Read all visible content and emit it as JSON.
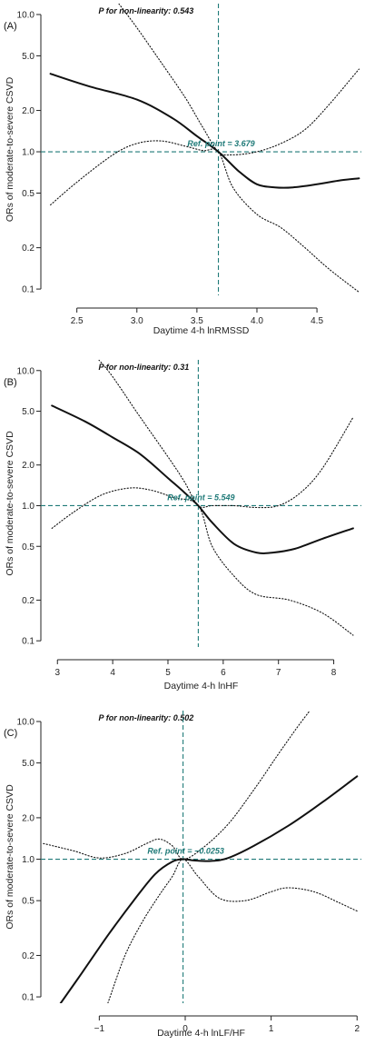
{
  "chart_data": [
    {
      "type": "line",
      "panel_label": "(A)",
      "annotation": "P for non-linearity: 0.543",
      "ref_label": "Ref. point = 3.679",
      "ref_x": 3.679,
      "ref_y": 1.0,
      "xlabel": "Daytime 4-h lnRMSSD",
      "ylabel": "ORs of moderate-to-severe CSVD",
      "xlim": [
        2.2,
        4.87
      ],
      "ylim": [
        0.09,
        12
      ],
      "yscale": "log",
      "x_ticks": [
        2.5,
        3.0,
        3.5,
        4.0,
        4.5
      ],
      "x_tick_labels": [
        "2.5",
        "3.0",
        "3.5",
        "4.0",
        "4.5"
      ],
      "y_ticks": [
        0.1,
        0.2,
        0.5,
        1.0,
        2.0,
        5.0,
        10.0
      ],
      "y_tick_labels": [
        "0.1",
        "0.2",
        "0.5",
        "1.0",
        "2.0",
        "5.0",
        "10.0"
      ],
      "series": [
        {
          "role": "estimate",
          "x": [
            2.28,
            2.6,
            3.0,
            3.3,
            3.5,
            3.679,
            3.85,
            4.0,
            4.15,
            4.3,
            4.5,
            4.7,
            4.85
          ],
          "y": [
            3.7,
            3.0,
            2.4,
            1.75,
            1.3,
            1.0,
            0.72,
            0.58,
            0.55,
            0.55,
            0.58,
            0.62,
            0.64
          ]
        },
        {
          "role": "upper-ci",
          "x": [
            2.85,
            3.0,
            3.2,
            3.4,
            3.55,
            3.679,
            3.8,
            4.0,
            4.2,
            4.4,
            4.6,
            4.85
          ],
          "y": [
            12,
            8.0,
            4.5,
            2.5,
            1.5,
            1.0,
            0.95,
            1.0,
            1.15,
            1.45,
            2.2,
            4.0
          ]
        },
        {
          "role": "lower-ci",
          "x": [
            2.28,
            2.5,
            2.8,
            3.0,
            3.2,
            3.4,
            3.55,
            3.679,
            3.8,
            4.0,
            4.2,
            4.4,
            4.6,
            4.85
          ],
          "y": [
            0.41,
            0.6,
            0.95,
            1.15,
            1.2,
            1.1,
            1.02,
            1.0,
            0.55,
            0.35,
            0.28,
            0.2,
            0.14,
            0.095
          ]
        }
      ]
    },
    {
      "type": "line",
      "panel_label": "(B)",
      "annotation": "P for non-linearity: 0.31",
      "ref_label": "Ref. point = 5.549",
      "ref_x": 5.549,
      "ref_y": 1.0,
      "xlabel": "Daytime 4-h lnHF",
      "ylabel": "ORs of moderate-to-severe CSVD",
      "xlim": [
        2.7,
        8.5
      ],
      "ylim": [
        0.09,
        12
      ],
      "yscale": "log",
      "x_ticks": [
        3,
        4,
        5,
        6,
        7,
        8
      ],
      "x_tick_labels": [
        "3",
        "4",
        "5",
        "6",
        "7",
        "8"
      ],
      "y_ticks": [
        0.1,
        0.2,
        0.5,
        1.0,
        2.0,
        5.0,
        10.0
      ],
      "y_tick_labels": [
        "0.1",
        "0.2",
        "0.5",
        "1.0",
        "2.0",
        "5.0",
        "10.0"
      ],
      "series": [
        {
          "role": "estimate",
          "x": [
            2.9,
            3.5,
            4.0,
            4.5,
            5.0,
            5.3,
            5.549,
            5.8,
            6.2,
            6.6,
            6.9,
            7.3,
            7.8,
            8.35
          ],
          "y": [
            5.5,
            4.2,
            3.2,
            2.4,
            1.6,
            1.25,
            1.0,
            0.75,
            0.52,
            0.45,
            0.45,
            0.48,
            0.57,
            0.68
          ]
        },
        {
          "role": "upper-ci",
          "x": [
            3.75,
            4.0,
            4.5,
            5.0,
            5.3,
            5.549,
            5.8,
            6.2,
            6.6,
            7.0,
            7.4,
            7.8,
            8.35
          ],
          "y": [
            12,
            9.0,
            4.5,
            2.3,
            1.5,
            1.0,
            1.0,
            1.0,
            0.97,
            1.0,
            1.25,
            1.9,
            4.5
          ]
        },
        {
          "role": "lower-ci",
          "x": [
            2.9,
            3.3,
            3.8,
            4.3,
            4.7,
            5.1,
            5.549,
            5.8,
            6.2,
            6.6,
            7.2,
            7.8,
            8.35
          ],
          "y": [
            0.68,
            0.9,
            1.2,
            1.35,
            1.3,
            1.15,
            1.0,
            0.5,
            0.3,
            0.22,
            0.2,
            0.16,
            0.11
          ]
        }
      ]
    },
    {
      "type": "line",
      "panel_label": "(C)",
      "annotation": "P for non-linearity: 0.502",
      "ref_label": "Ref. point = −0.0253",
      "ref_x": -0.0253,
      "ref_y": 1.0,
      "xlabel": "Daytime 4-h lnLF/HF",
      "ylabel": "ORs of moderate-to-severe CSVD",
      "xlim": [
        -1.68,
        2.05
      ],
      "ylim": [
        0.09,
        12
      ],
      "yscale": "log",
      "x_ticks": [
        -1,
        0,
        1,
        2
      ],
      "x_tick_labels": [
        "−1",
        "0",
        "1",
        "2"
      ],
      "y_ticks": [
        0.1,
        0.2,
        0.5,
        1.0,
        2.0,
        5.0,
        10.0
      ],
      "y_tick_labels": [
        "0.1",
        "0.2",
        "0.5",
        "1.0",
        "2.0",
        "5.0",
        "10.0"
      ],
      "series": [
        {
          "role": "estimate",
          "x": [
            -1.45,
            -1.2,
            -0.9,
            -0.6,
            -0.35,
            -0.15,
            -0.0253,
            0.1,
            0.3,
            0.5,
            0.8,
            1.2,
            1.6,
            2.0
          ],
          "y": [
            0.09,
            0.15,
            0.28,
            0.5,
            0.78,
            0.96,
            1.0,
            0.98,
            0.97,
            1.02,
            1.25,
            1.75,
            2.6,
            4.0
          ]
        },
        {
          "role": "upper-ci",
          "x": [
            -1.65,
            -1.3,
            -1.0,
            -0.7,
            -0.45,
            -0.3,
            -0.15,
            -0.0253,
            0.2,
            0.5,
            0.8,
            1.1,
            1.3,
            1.45
          ],
          "y": [
            1.3,
            1.15,
            1.02,
            1.1,
            1.3,
            1.4,
            1.25,
            1.0,
            1.2,
            1.8,
            3.2,
            6.0,
            9.0,
            12
          ]
        },
        {
          "role": "lower-ci",
          "x": [
            -0.9,
            -0.7,
            -0.5,
            -0.3,
            -0.15,
            -0.0253,
            0.15,
            0.4,
            0.7,
            1.0,
            1.2,
            1.5,
            1.8,
            2.0
          ],
          "y": [
            0.09,
            0.2,
            0.35,
            0.55,
            0.75,
            1.0,
            0.75,
            0.52,
            0.5,
            0.58,
            0.62,
            0.58,
            0.48,
            0.42
          ]
        }
      ]
    }
  ]
}
